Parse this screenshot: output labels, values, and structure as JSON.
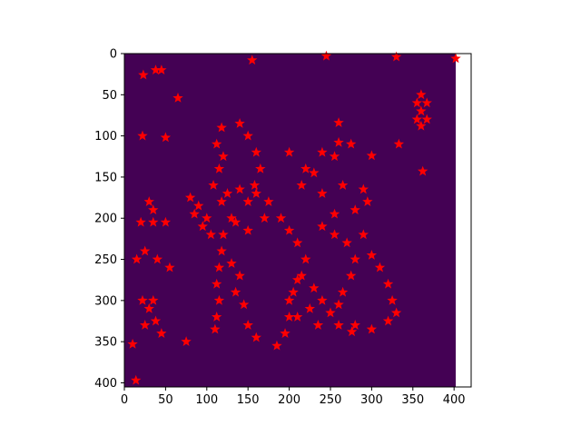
{
  "chart_data": {
    "type": "scatter",
    "title": "",
    "xlabel": "",
    "ylabel": "",
    "xlim": [
      0,
      420
    ],
    "ylim": [
      405,
      0
    ],
    "y_inverted": true,
    "grid": false,
    "legend": "none",
    "background_image": {
      "description_color": "#440154",
      "extent_x": [
        0,
        402
      ],
      "extent_y": [
        405,
        0
      ]
    },
    "marker": {
      "shape": "star",
      "color": "#ff0000"
    },
    "x_ticks": [
      0,
      50,
      100,
      150,
      200,
      250,
      300,
      350,
      400
    ],
    "x_tick_labels": [
      "0",
      "50",
      "100",
      "150",
      "200",
      "250",
      "300",
      "350",
      "400"
    ],
    "y_ticks": [
      0,
      50,
      100,
      150,
      200,
      250,
      300,
      350,
      400
    ],
    "y_tick_labels": [
      "0",
      "50",
      "100",
      "150",
      "200",
      "250",
      "300",
      "350",
      "400"
    ],
    "series": [
      {
        "values": [
          [
            155,
            8
          ],
          [
            245,
            3
          ],
          [
            330,
            4
          ],
          [
            402,
            6
          ],
          [
            38,
            20
          ],
          [
            45,
            20
          ],
          [
            23,
            26
          ],
          [
            65,
            54
          ],
          [
            260,
            84
          ],
          [
            22,
            100
          ],
          [
            50,
            102
          ],
          [
            200,
            120
          ],
          [
            300,
            124
          ],
          [
            333,
            110
          ],
          [
            362,
            143
          ],
          [
            10,
            353
          ],
          [
            75,
            350
          ],
          [
            276,
            338
          ],
          [
            14,
            397
          ],
          [
            360,
            50
          ],
          [
            355,
            60
          ],
          [
            367,
            60
          ],
          [
            360,
            70
          ],
          [
            355,
            80
          ],
          [
            367,
            80
          ],
          [
            360,
            88
          ],
          [
            118,
            90
          ],
          [
            112,
            110
          ],
          [
            120,
            125
          ],
          [
            115,
            140
          ],
          [
            108,
            160
          ],
          [
            118,
            180
          ],
          [
            130,
            200
          ],
          [
            120,
            220
          ],
          [
            118,
            240
          ],
          [
            115,
            260
          ],
          [
            112,
            280
          ],
          [
            115,
            300
          ],
          [
            112,
            320
          ],
          [
            110,
            335
          ],
          [
            130,
            255
          ],
          [
            140,
            270
          ],
          [
            135,
            290
          ],
          [
            145,
            305
          ],
          [
            150,
            330
          ],
          [
            160,
            345
          ],
          [
            140,
            85
          ],
          [
            150,
            100
          ],
          [
            160,
            120
          ],
          [
            165,
            140
          ],
          [
            158,
            160
          ],
          [
            150,
            180
          ],
          [
            80,
            175
          ],
          [
            90,
            185
          ],
          [
            85,
            195
          ],
          [
            95,
            210
          ],
          [
            105,
            220
          ],
          [
            100,
            200
          ],
          [
            125,
            170
          ],
          [
            140,
            165
          ],
          [
            160,
            170
          ],
          [
            175,
            180
          ],
          [
            170,
            200
          ],
          [
            150,
            215
          ],
          [
            135,
            205
          ],
          [
            20,
            205
          ],
          [
            35,
            205
          ],
          [
            50,
            205
          ],
          [
            15,
            250
          ],
          [
            25,
            240
          ],
          [
            40,
            250
          ],
          [
            55,
            260
          ],
          [
            22,
            300
          ],
          [
            30,
            310
          ],
          [
            38,
            325
          ],
          [
            25,
            330
          ],
          [
            35,
            300
          ],
          [
            45,
            340
          ],
          [
            30,
            180
          ],
          [
            35,
            190
          ],
          [
            190,
            200
          ],
          [
            200,
            215
          ],
          [
            210,
            230
          ],
          [
            220,
            250
          ],
          [
            215,
            270
          ],
          [
            205,
            290
          ],
          [
            200,
            320
          ],
          [
            195,
            340
          ],
          [
            185,
            355
          ],
          [
            200,
            300
          ],
          [
            210,
            275
          ],
          [
            230,
            285
          ],
          [
            220,
            140
          ],
          [
            240,
            120
          ],
          [
            260,
            108
          ],
          [
            275,
            110
          ],
          [
            255,
            125
          ],
          [
            230,
            145
          ],
          [
            215,
            160
          ],
          [
            240,
            170
          ],
          [
            265,
            160
          ],
          [
            290,
            165
          ],
          [
            295,
            180
          ],
          [
            280,
            190
          ],
          [
            255,
            195
          ],
          [
            240,
            210
          ],
          [
            255,
            220
          ],
          [
            270,
            230
          ],
          [
            280,
            250
          ],
          [
            275,
            270
          ],
          [
            265,
            290
          ],
          [
            260,
            305
          ],
          [
            250,
            315
          ],
          [
            240,
            300
          ],
          [
            225,
            310
          ],
          [
            210,
            320
          ],
          [
            235,
            330
          ],
          [
            260,
            330
          ],
          [
            280,
            330
          ],
          [
            300,
            335
          ],
          [
            320,
            325
          ],
          [
            330,
            315
          ],
          [
            325,
            300
          ],
          [
            320,
            280
          ],
          [
            310,
            260
          ],
          [
            300,
            245
          ],
          [
            290,
            220
          ]
        ]
      }
    ]
  }
}
